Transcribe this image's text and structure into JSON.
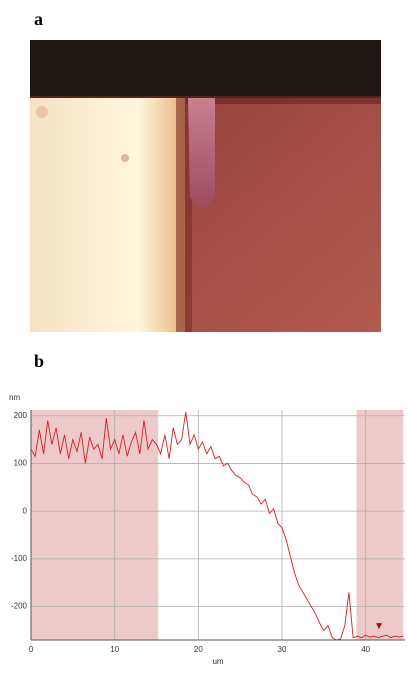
{
  "panel_labels": [
    "a",
    "b"
  ],
  "chart_data": {
    "type": "line",
    "ylabel": "nm",
    "xlabel": "um",
    "color": "#d42020",
    "shade_color": "#e8bcbc",
    "grid": true,
    "xlim": [
      0,
      44.7
    ],
    "ylim": [
      -270,
      212
    ],
    "xticks": [
      0,
      10,
      20,
      30,
      40
    ],
    "yticks": [
      200,
      100,
      0,
      -100,
      -200
    ],
    "shaded_regions": [
      [
        0,
        15.2
      ],
      [
        38.9,
        44.5
      ]
    ],
    "marker": {
      "x": 41.6,
      "y": -243
    },
    "x": [
      0,
      0.5,
      1,
      1.5,
      2,
      2.5,
      3,
      3.5,
      4,
      4.5,
      5,
      5.5,
      6,
      6.5,
      7,
      7.5,
      8,
      8.5,
      9,
      9.5,
      10,
      10.5,
      11,
      11.5,
      12,
      12.5,
      13,
      13.5,
      14,
      14.5,
      15,
      15.5,
      16,
      16.5,
      17,
      17.5,
      18,
      18.5,
      19,
      19.5,
      20,
      20.5,
      21,
      21.5,
      22,
      22.5,
      23,
      23.5,
      24,
      24.5,
      25,
      25.5,
      26,
      26.5,
      27,
      27.5,
      28,
      28.5,
      29,
      29.5,
      30,
      30.5,
      31,
      31.5,
      32,
      32.5,
      33,
      33.5,
      34,
      34.5,
      35,
      35.5,
      36,
      36.5,
      37,
      37.5,
      38,
      38.5,
      39,
      39.5,
      40,
      40.5,
      41,
      41.5,
      42,
      42.5,
      43,
      43.5,
      44,
      44.5
    ],
    "values": [
      130,
      115,
      170,
      120,
      190,
      140,
      175,
      120,
      160,
      110,
      150,
      125,
      165,
      100,
      155,
      130,
      140,
      110,
      195,
      130,
      150,
      120,
      160,
      115,
      145,
      165,
      120,
      190,
      130,
      150,
      140,
      120,
      160,
      110,
      175,
      140,
      150,
      208,
      140,
      160,
      130,
      145,
      120,
      135,
      110,
      115,
      95,
      100,
      85,
      75,
      70,
      60,
      55,
      35,
      30,
      15,
      25,
      -5,
      5,
      -25,
      -35,
      -60,
      -95,
      -130,
      -155,
      -170,
      -185,
      -200,
      -215,
      -235,
      -250,
      -240,
      -265,
      -270,
      -268,
      -240,
      -170,
      -265,
      -262,
      -265,
      -260,
      -264,
      -262,
      -265,
      -262,
      -260,
      -265,
      -262,
      -264,
      -262
    ]
  }
}
